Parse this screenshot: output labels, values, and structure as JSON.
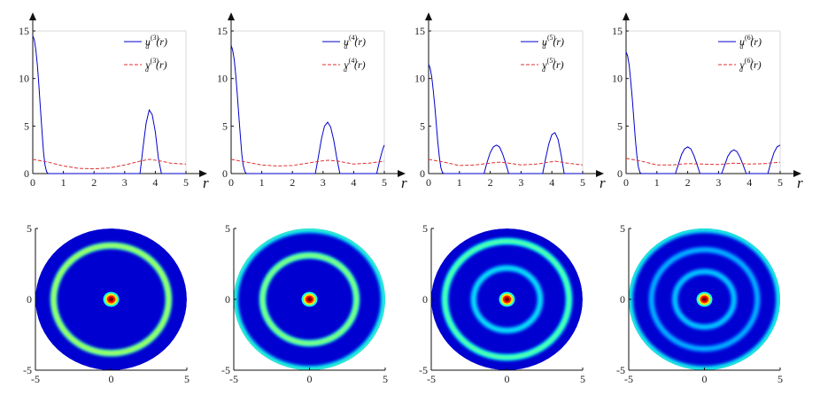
{
  "chart_data": [
    {
      "type": "line",
      "xlabel": "r",
      "xlim": [
        0,
        5
      ],
      "ylim": [
        0,
        15
      ],
      "xticks": [
        0,
        1,
        2,
        3,
        4,
        5
      ],
      "yticks": [
        0,
        5,
        10,
        15
      ],
      "legend_placement": "top-right",
      "series": [
        {
          "name": "u_d^{(3)}(r)",
          "color": "#0000cc",
          "style": "solid",
          "x": [
            0,
            0.05,
            0.1,
            0.15,
            0.2,
            0.25,
            0.3,
            0.35,
            0.4,
            0.45,
            0.5,
            0.55,
            0.6,
            3.5,
            3.6,
            3.7,
            3.8,
            3.9,
            4.0,
            4.1,
            4.2,
            5.0
          ],
          "y": [
            14.5,
            14.1,
            13.0,
            11.4,
            9.3,
            6.9,
            4.5,
            2.3,
            0.9,
            0.2,
            0,
            0,
            0,
            0,
            2.8,
            5.3,
            6.7,
            6.2,
            4.4,
            1.6,
            0,
            0
          ]
        },
        {
          "name": "v_d^{(3)}(r)",
          "color": "#e03030",
          "style": "dashed",
          "x": [
            0,
            0.5,
            1.0,
            1.5,
            2.0,
            2.5,
            3.0,
            3.5,
            3.8,
            4.2,
            4.5,
            5.0
          ],
          "y": [
            1.5,
            1.2,
            0.8,
            0.55,
            0.5,
            0.6,
            0.9,
            1.3,
            1.5,
            1.3,
            1.1,
            1.0
          ]
        }
      ]
    },
    {
      "type": "line",
      "xlabel": "r",
      "xlim": [
        0,
        5
      ],
      "ylim": [
        0,
        15
      ],
      "xticks": [
        0,
        1,
        2,
        3,
        4,
        5
      ],
      "yticks": [
        0,
        5,
        10,
        15
      ],
      "legend_placement": "top-right",
      "series": [
        {
          "name": "u_d^{(4)}(r)",
          "color": "#0000cc",
          "style": "solid",
          "x": [
            0,
            0.05,
            0.1,
            0.15,
            0.2,
            0.25,
            0.3,
            0.35,
            0.4,
            0.45,
            0.5,
            0.55,
            2.75,
            2.85,
            2.95,
            3.05,
            3.15,
            3.25,
            3.35,
            3.45,
            3.55,
            4.75,
            4.85,
            4.95,
            5.0
          ],
          "y": [
            13.5,
            13.0,
            12.0,
            10.4,
            8.4,
            6.2,
            4.0,
            2.0,
            0.8,
            0.2,
            0,
            0,
            0,
            1.8,
            3.7,
            5.0,
            5.4,
            4.9,
            3.5,
            1.6,
            0,
            0,
            1.4,
            2.6,
            3.0
          ]
        },
        {
          "name": "v_d^{(4)}(r)",
          "color": "#e03030",
          "style": "dashed",
          "x": [
            0,
            0.5,
            1.0,
            1.5,
            2.0,
            2.5,
            3.0,
            3.2,
            3.5,
            4.0,
            4.5,
            5.0
          ],
          "y": [
            1.5,
            1.2,
            0.9,
            0.8,
            0.85,
            1.1,
            1.35,
            1.4,
            1.3,
            1.0,
            1.1,
            1.3
          ]
        }
      ]
    },
    {
      "type": "line",
      "xlabel": "r",
      "xlim": [
        0,
        5
      ],
      "ylim": [
        0,
        15
      ],
      "xticks": [
        0,
        1,
        2,
        3,
        4,
        5
      ],
      "yticks": [
        0,
        5,
        10,
        15
      ],
      "legend_placement": "top-right",
      "series": [
        {
          "name": "u_d^{(5)}(r)",
          "color": "#0000cc",
          "style": "solid",
          "x": [
            0,
            0.05,
            0.1,
            0.15,
            0.2,
            0.25,
            0.3,
            0.35,
            0.4,
            0.45,
            0.5,
            0.55,
            1.8,
            1.9,
            2.0,
            2.1,
            2.2,
            2.3,
            2.4,
            2.5,
            2.6,
            3.7,
            3.8,
            3.9,
            4.0,
            4.1,
            4.2,
            4.3,
            4.4,
            5.0
          ],
          "y": [
            11.5,
            11.1,
            10.2,
            8.8,
            7.1,
            5.2,
            3.3,
            1.7,
            0.6,
            0.1,
            0,
            0,
            0,
            1.2,
            2.2,
            2.8,
            3.0,
            2.8,
            2.1,
            1.1,
            0,
            0,
            1.6,
            3.1,
            4.1,
            4.3,
            3.6,
            2.0,
            0,
            0
          ]
        },
        {
          "name": "v_d^{(5)}(r)",
          "color": "#e03030",
          "style": "dashed",
          "x": [
            0,
            0.5,
            1.0,
            1.5,
            2.0,
            2.3,
            2.6,
            3.0,
            3.5,
            4.1,
            4.5,
            5.0
          ],
          "y": [
            1.5,
            1.2,
            0.85,
            0.9,
            1.1,
            1.2,
            1.1,
            0.9,
            1.0,
            1.3,
            1.1,
            0.9
          ]
        }
      ]
    },
    {
      "type": "line",
      "xlabel": "r",
      "xlim": [
        0,
        5
      ],
      "ylim": [
        0,
        15
      ],
      "xticks": [
        0,
        1,
        2,
        3,
        4,
        5
      ],
      "yticks": [
        0,
        5,
        10,
        15
      ],
      "legend_placement": "top-right",
      "series": [
        {
          "name": "u_d^{(6)}(r)",
          "color": "#0000cc",
          "style": "solid",
          "x": [
            0,
            0.05,
            0.1,
            0.15,
            0.2,
            0.25,
            0.3,
            0.35,
            0.4,
            0.45,
            0.5,
            0.55,
            1.6,
            1.7,
            1.8,
            1.9,
            2.0,
            2.1,
            2.2,
            2.3,
            2.4,
            3.1,
            3.2,
            3.3,
            3.4,
            3.5,
            3.6,
            3.7,
            3.8,
            3.9,
            4.6,
            4.7,
            4.8,
            4.9,
            5.0
          ],
          "y": [
            12.8,
            12.4,
            11.4,
            9.8,
            7.9,
            5.8,
            3.7,
            1.9,
            0.7,
            0.1,
            0,
            0,
            0,
            1.0,
            2.0,
            2.6,
            2.8,
            2.6,
            1.9,
            1.0,
            0,
            0,
            0.9,
            1.8,
            2.3,
            2.5,
            2.3,
            1.7,
            0.9,
            0,
            0,
            1.2,
            2.2,
            2.8,
            3.0
          ]
        },
        {
          "name": "v_d^{(6)}(r)",
          "color": "#e03030",
          "style": "dashed",
          "x": [
            0,
            0.5,
            1.0,
            1.5,
            2.0,
            2.5,
            3.0,
            3.5,
            4.0,
            4.5,
            5.0
          ],
          "y": [
            1.6,
            1.3,
            0.9,
            0.9,
            1.05,
            1.0,
            0.95,
            1.1,
            1.0,
            1.05,
            1.2
          ]
        }
      ]
    },
    {
      "type": "heatmap",
      "colormap": "jet",
      "xlim": [
        -5,
        5
      ],
      "ylim": [
        -5,
        5
      ],
      "xticks": [
        -5,
        0,
        5
      ],
      "yticks": [
        -5,
        0,
        5
      ],
      "center_peak_radius": 0.35,
      "background_level": 0.08,
      "rings": [
        {
          "r": 3.8,
          "width": 0.22,
          "level": 0.45
        }
      ]
    },
    {
      "type": "heatmap",
      "colormap": "jet",
      "xlim": [
        -5,
        5
      ],
      "ylim": [
        -5,
        5
      ],
      "xticks": [
        -5,
        0,
        5
      ],
      "yticks": [
        -5,
        0,
        5
      ],
      "center_peak_radius": 0.35,
      "background_level": 0.08,
      "rings": [
        {
          "r": 3.1,
          "width": 0.22,
          "level": 0.42
        },
        {
          "r": 4.95,
          "width": 0.25,
          "level": 0.32
        }
      ]
    },
    {
      "type": "heatmap",
      "colormap": "jet",
      "xlim": [
        -5,
        5
      ],
      "ylim": [
        -5,
        5
      ],
      "xticks": [
        -5,
        0,
        5
      ],
      "yticks": [
        -5,
        0,
        5
      ],
      "center_peak_radius": 0.35,
      "background_level": 0.08,
      "rings": [
        {
          "r": 2.2,
          "width": 0.22,
          "level": 0.27
        },
        {
          "r": 4.1,
          "width": 0.22,
          "level": 0.38
        }
      ]
    },
    {
      "type": "heatmap",
      "colormap": "jet",
      "xlim": [
        -5,
        5
      ],
      "ylim": [
        -5,
        5
      ],
      "xticks": [
        -5,
        0,
        5
      ],
      "yticks": [
        -5,
        0,
        5
      ],
      "center_peak_radius": 0.35,
      "background_level": 0.08,
      "rings": [
        {
          "r": 1.95,
          "width": 0.22,
          "level": 0.24
        },
        {
          "r": 3.5,
          "width": 0.22,
          "level": 0.22
        },
        {
          "r": 4.95,
          "width": 0.25,
          "level": 0.3
        }
      ]
    }
  ]
}
